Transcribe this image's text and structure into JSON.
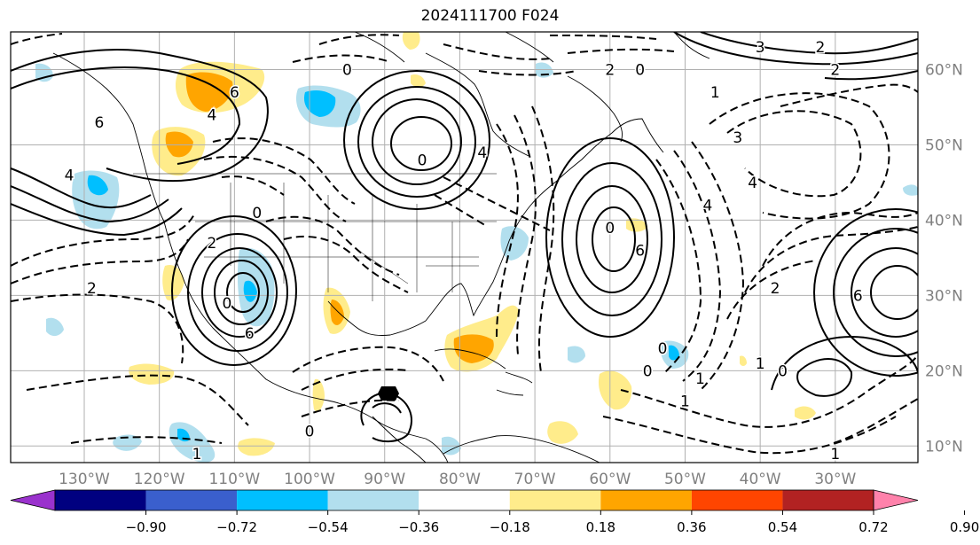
{
  "title": "2024111700 F024",
  "map": {
    "lon_labels": [
      "130°W",
      "120°W",
      "110°W",
      "100°W",
      "90°W",
      "80°W",
      "70°W",
      "60°W",
      "50°W",
      "40°W",
      "30°W"
    ],
    "lat_labels": [
      "60°N",
      "50°N",
      "40°N",
      "30°N",
      "20°N",
      "10°N"
    ],
    "gridline_color": "#b0b0b0",
    "label_color": "#808080",
    "contour_labels": [
      {
        "text": "6",
        "lon": -128,
        "lat": 53
      },
      {
        "text": "4",
        "lon": -132,
        "lat": 46
      },
      {
        "text": "6",
        "lon": -110,
        "lat": 57
      },
      {
        "text": "4",
        "lon": -113,
        "lat": 54
      },
      {
        "text": "0",
        "lon": -95,
        "lat": 60
      },
      {
        "text": "0",
        "lon": -85,
        "lat": 48
      },
      {
        "text": "2",
        "lon": -113,
        "lat": 37
      },
      {
        "text": "0",
        "lon": -107,
        "lat": 41
      },
      {
        "text": "6",
        "lon": -108,
        "lat": 25
      },
      {
        "text": "0",
        "lon": -111,
        "lat": 29
      },
      {
        "text": "2",
        "lon": -129,
        "lat": 31
      },
      {
        "text": "0",
        "lon": -60,
        "lat": 39
      },
      {
        "text": "6",
        "lon": -56,
        "lat": 36
      },
      {
        "text": "0",
        "lon": -53,
        "lat": 23
      },
      {
        "text": "0",
        "lon": -55,
        "lat": 20
      },
      {
        "text": "1",
        "lon": -48,
        "lat": 19
      },
      {
        "text": "3",
        "lon": -43,
        "lat": 51
      },
      {
        "text": "4",
        "lon": -41,
        "lat": 45
      },
      {
        "text": "0",
        "lon": -56,
        "lat": 60
      },
      {
        "text": "2",
        "lon": -60,
        "lat": 60
      },
      {
        "text": "3",
        "lon": -40,
        "lat": 63
      },
      {
        "text": "2",
        "lon": -32,
        "lat": 63
      },
      {
        "text": "2",
        "lon": -30,
        "lat": 60
      },
      {
        "text": "1",
        "lon": -46,
        "lat": 57
      },
      {
        "text": "6",
        "lon": -27,
        "lat": 30
      },
      {
        "text": "1",
        "lon": -40,
        "lat": 21
      },
      {
        "text": "0",
        "lon": -37,
        "lat": 20
      },
      {
        "text": "2",
        "lon": -38,
        "lat": 31
      },
      {
        "text": "1",
        "lon": -50,
        "lat": 16
      },
      {
        "text": "1",
        "lon": -115,
        "lat": 9
      },
      {
        "text": "0",
        "lon": -100,
        "lat": 12
      },
      {
        "text": "1",
        "lon": -30,
        "lat": 9
      },
      {
        "text": "4",
        "lon": -77,
        "lat": 49
      },
      {
        "text": "4",
        "lon": -47,
        "lat": 42
      }
    ]
  },
  "colorbar": {
    "ticks": [
      "−0.90",
      "−0.72",
      "−0.54",
      "−0.36",
      "−0.18",
      "0.18",
      "0.36",
      "0.54",
      "0.72",
      "0.90"
    ],
    "colors": [
      "#9a32cd",
      "#000080",
      "#3a5fcd",
      "#00bfff",
      "#b2dfee",
      "#ffffff",
      "#ffec8b",
      "#ffa500",
      "#ff4500",
      "#b22222",
      "#ff82ab"
    ]
  }
}
